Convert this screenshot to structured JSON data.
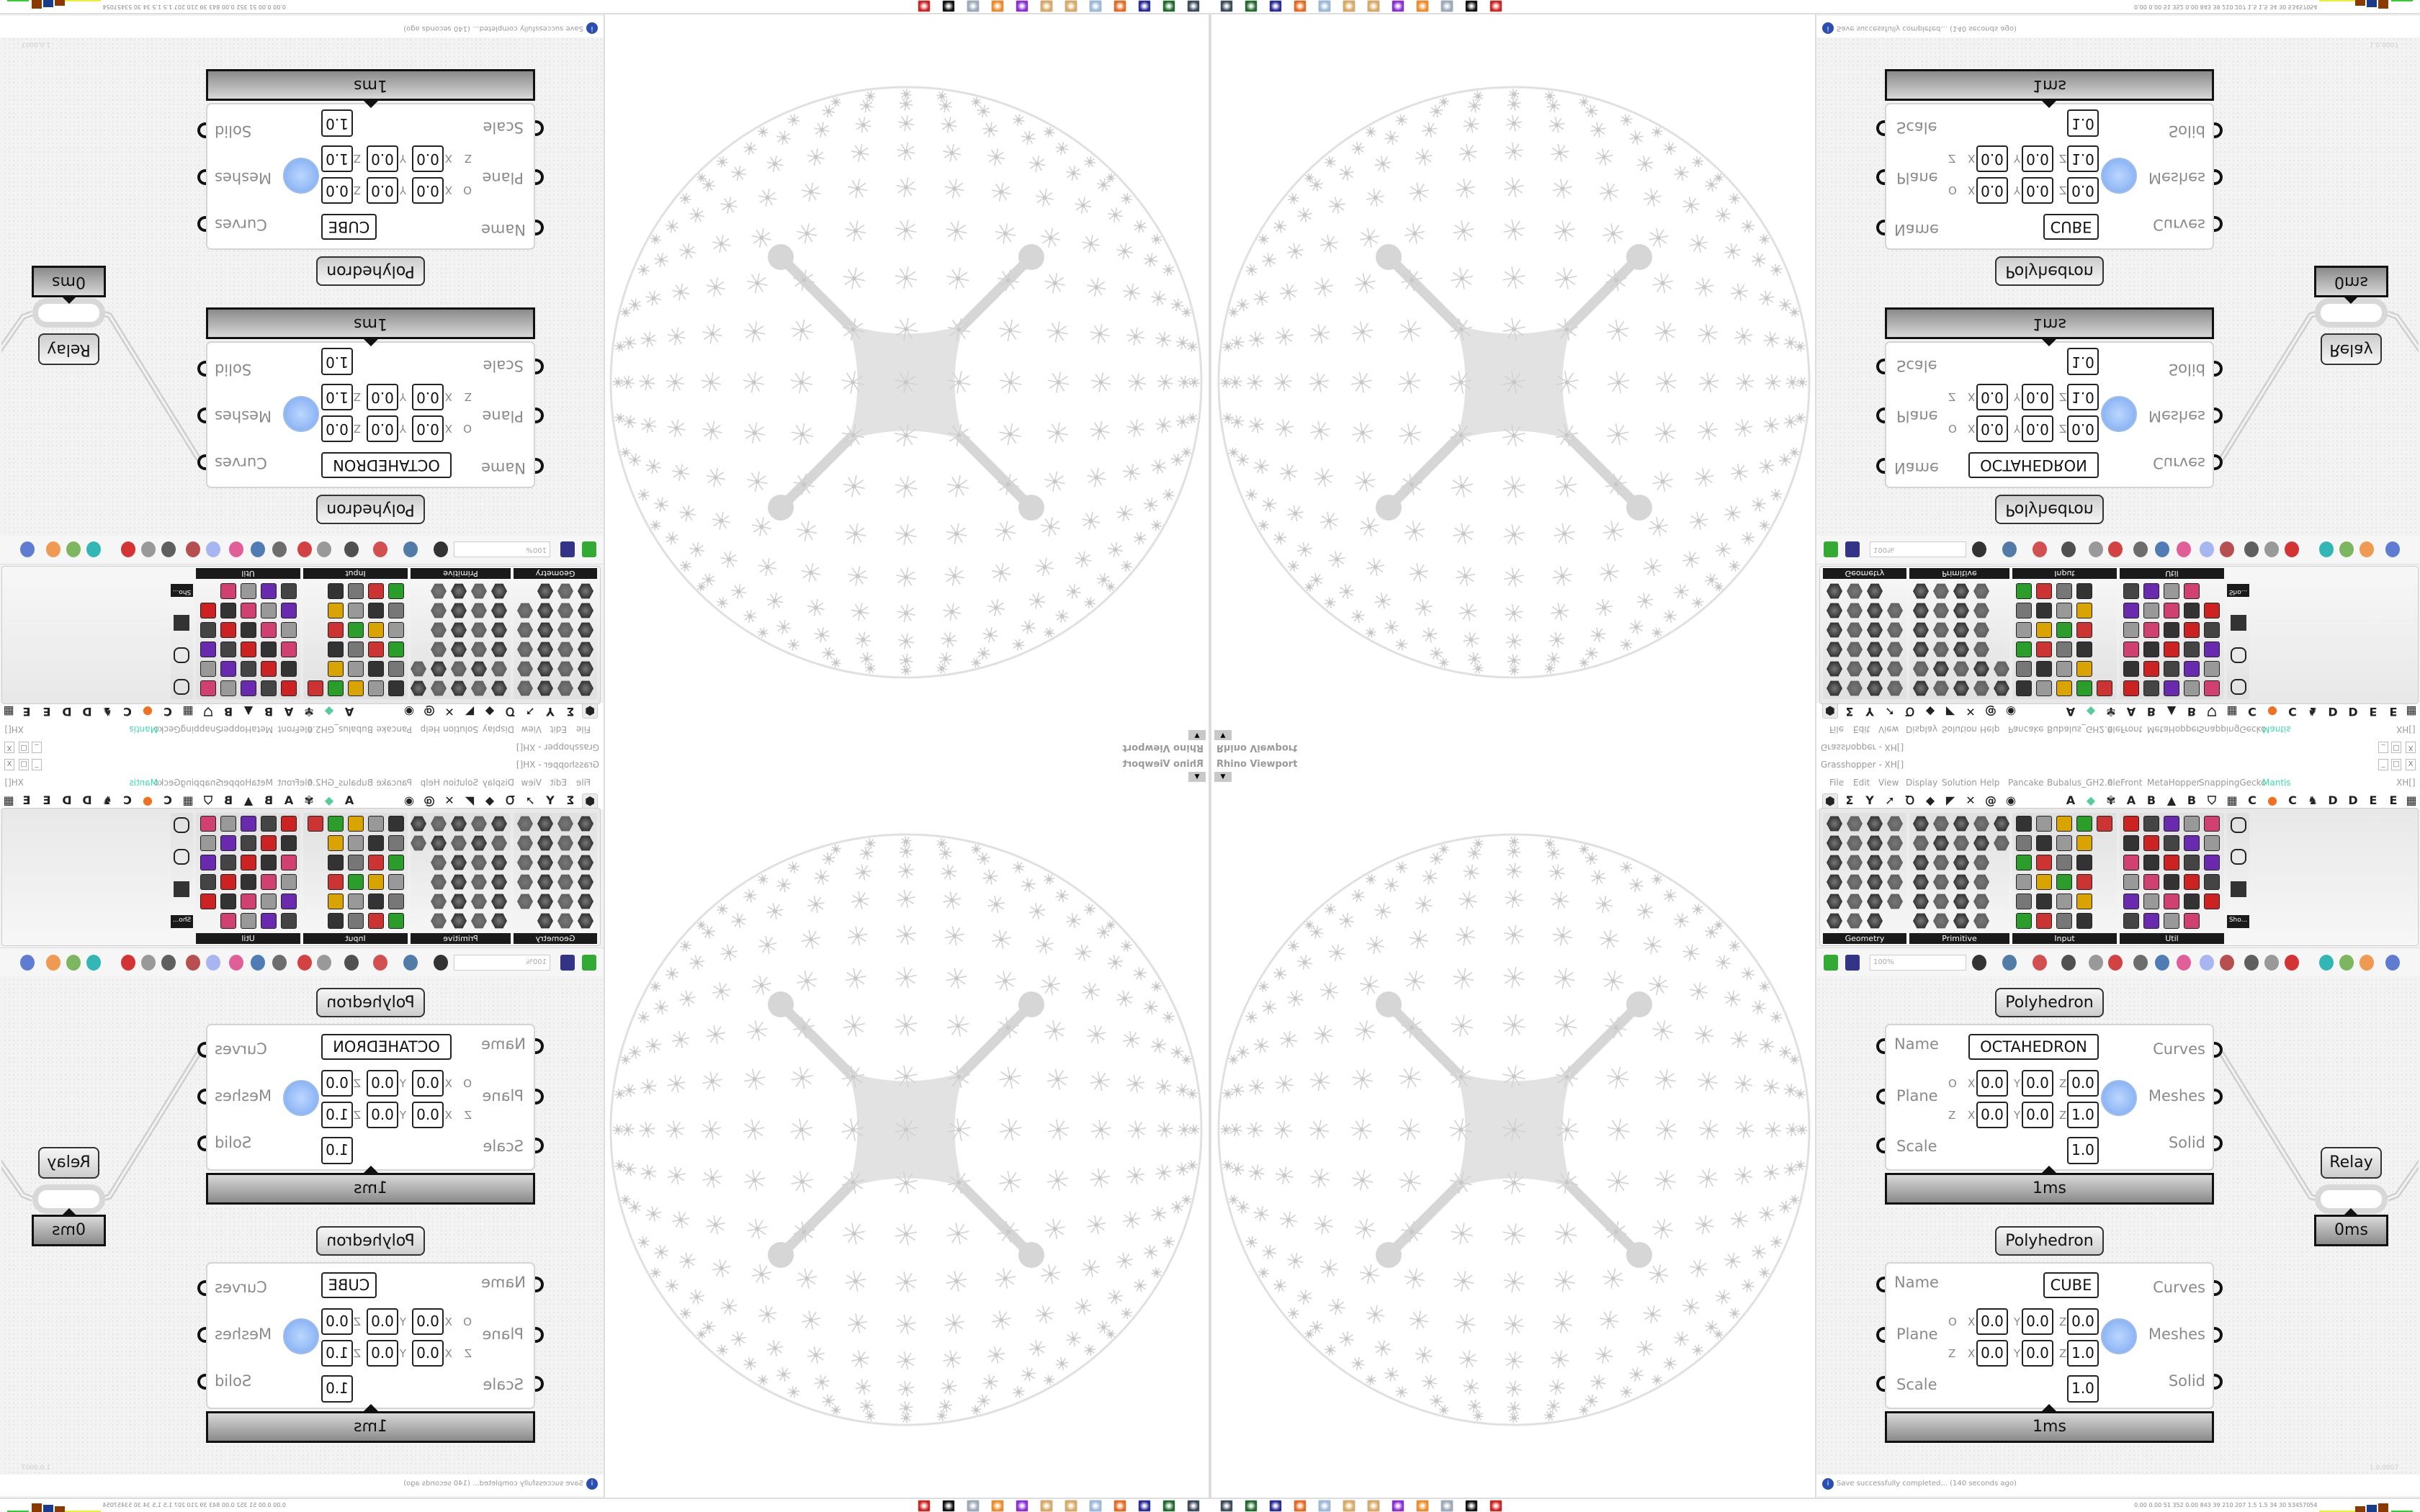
{
  "window": {
    "title": "Grasshopper - XH[]",
    "doc_tab": "XH[]",
    "minimize": "_",
    "maximize": "□",
    "close": "X"
  },
  "menu": [
    "File",
    "Edit",
    "View",
    "Display",
    "Solution",
    "Help",
    "Pancake",
    "Bubalus_GH2.0",
    "eleFront",
    "MetaHopper",
    "SnappingGecko",
    "Mantis"
  ],
  "active_plugin_color": "#3fd9b0",
  "tab_icons": [
    {
      "name": "params-hexagon",
      "glyph": "⬢"
    },
    {
      "name": "maths-sigma",
      "glyph": "Σ"
    },
    {
      "name": "sets-y",
      "glyph": "Y"
    },
    {
      "name": "vector-arrow",
      "glyph": "➚"
    },
    {
      "name": "curve-loop",
      "glyph": "Ꝺ"
    },
    {
      "name": "surface-leaf",
      "glyph": "◆"
    },
    {
      "name": "mesh-flag",
      "glyph": "◤"
    },
    {
      "name": "intersect-x",
      "glyph": "✕"
    },
    {
      "name": "transform-snail",
      "glyph": "@"
    },
    {
      "name": "display-eye",
      "glyph": "◉"
    },
    {
      "name": "plugin-a",
      "glyph": "A"
    },
    {
      "name": "gem",
      "glyph": "◆"
    },
    {
      "name": "puzzle",
      "glyph": "✾"
    },
    {
      "name": "plugin-a2",
      "glyph": "A"
    },
    {
      "name": "plugin-b",
      "glyph": "B"
    },
    {
      "name": "mountain",
      "glyph": "▲"
    },
    {
      "name": "plugin-b2",
      "glyph": "B"
    },
    {
      "name": "shield",
      "glyph": "⛉"
    },
    {
      "name": "grid",
      "glyph": "▦"
    },
    {
      "name": "plugin-c",
      "glyph": "C"
    },
    {
      "name": "orange-circle",
      "glyph": "●"
    },
    {
      "name": "plugin-c2",
      "glyph": "C"
    },
    {
      "name": "bird",
      "glyph": "♞"
    },
    {
      "name": "plugin-d",
      "glyph": "D"
    },
    {
      "name": "plugin-d2",
      "glyph": "D"
    },
    {
      "name": "plugin-e",
      "glyph": "E"
    },
    {
      "name": "plugin-e2",
      "glyph": "E"
    },
    {
      "name": "grid2",
      "glyph": "▦"
    }
  ],
  "panels": [
    "Geometry",
    "Primitive",
    "Input",
    "Util"
  ],
  "extra_panel": "Sho...",
  "toolbar": {
    "zoom": "100%"
  },
  "components": [
    {
      "title": "Polyhedron",
      "inputs": [
        "Name",
        "Plane",
        "Scale"
      ],
      "outputs": [
        "Curves",
        "Meshes",
        "Solid"
      ],
      "name": "OCTAHEDRON",
      "origin_label": "O",
      "zaxis_label": "Z",
      "axes": [
        "X",
        "Y",
        "Z"
      ],
      "origin": [
        "0.0",
        "0.0",
        "0.0"
      ],
      "zaxis": [
        "0.0",
        "0.0",
        "1.0"
      ],
      "scale": "1.0",
      "time": "1ms"
    },
    {
      "title": "Polyhedron",
      "inputs": [
        "Name",
        "Plane",
        "Scale"
      ],
      "outputs": [
        "Curves",
        "Meshes",
        "Solid"
      ],
      "name": "CUBE",
      "origin_label": "O",
      "zaxis_label": "Z",
      "axes": [
        "X",
        "Y",
        "Z"
      ],
      "origin": [
        "0.0",
        "0.0",
        "0.0"
      ],
      "zaxis": [
        "0.0",
        "0.0",
        "1.0"
      ],
      "scale": "1.0",
      "time": "1ms"
    }
  ],
  "relay": {
    "label": "Relay",
    "time": "0ms"
  },
  "status": {
    "message": "Save successfully completed... (140 seconds ago)",
    "version": "1.0.0007"
  },
  "viewport": {
    "label": "Rhino Viewport"
  },
  "taskbar": {
    "stats": "0.00 0.00 51 352 0.00 843 39 210 207 1.5 1.5 34 30 53457054",
    "apps": [
      {
        "name": "remote-desktop",
        "color": "#3a4a5a"
      },
      {
        "name": "terminal",
        "color": "#1f6b2a"
      },
      {
        "name": "floppy-64",
        "color": "#2a2a9a"
      },
      {
        "name": "firefox",
        "color": "#e8681a"
      },
      {
        "name": "calculator",
        "color": "#9ab8d8"
      },
      {
        "name": "paint",
        "color": "#d8a860"
      },
      {
        "name": "paint-2",
        "color": "#d8a860"
      },
      {
        "name": "purple-app",
        "color": "#8a2bd8"
      },
      {
        "name": "blender",
        "color": "#f08a20"
      },
      {
        "name": "scroll",
        "color": "#9aa8b8"
      },
      {
        "name": "wolf",
        "color": "#111111"
      },
      {
        "name": "red-app",
        "color": "#d02020"
      }
    ]
  }
}
